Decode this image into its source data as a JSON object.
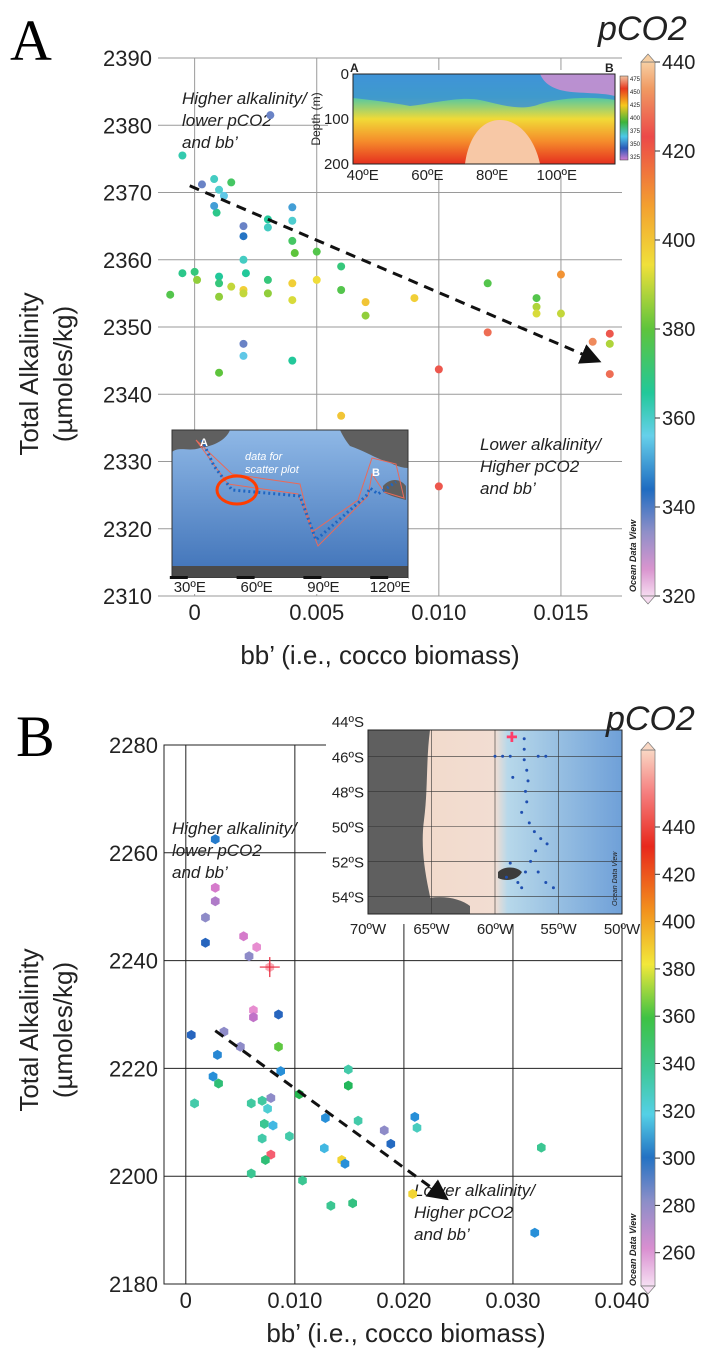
{
  "figure": {
    "panelA": {
      "letter": "A",
      "ylabel": "Total Alkalinity",
      "ylabel_units": "(µmoles/kg)",
      "xlabel": "bb’ (i.e., cocco biomass)",
      "x_ticks": [
        "0",
        "0.005",
        "0.010",
        "0.015"
      ],
      "y_ticks": [
        "2390",
        "2380",
        "2370",
        "2360",
        "2350",
        "2340",
        "2330",
        "2320",
        "2310"
      ],
      "annotation_upper": [
        "Higher alkalinity/",
        "lower pCO2",
        "and bb’"
      ],
      "annotation_lower": [
        "Lower alkalinity/",
        "Higher pCO2",
        "and bb’"
      ],
      "colorbar": {
        "title": "pCO2",
        "ticks": [
          "440",
          "420",
          "400",
          "380",
          "360",
          "340",
          "320"
        ],
        "watermark": "Ocean Data View"
      },
      "inset_section": {
        "label_left": "A",
        "label_right": "B",
        "ylabel": "Depth (m)",
        "y_ticks": [
          "0",
          "100",
          "200"
        ],
        "x_ticks": [
          "40ºE",
          "60ºE",
          "80ºE",
          "100ºE"
        ],
        "colorbar_ticks": [
          "475",
          "450",
          "425",
          "400",
          "375",
          "350",
          "325"
        ]
      },
      "inset_map": {
        "label_a": "A",
        "label_b": "B",
        "note": [
          "data for",
          "scatter plot"
        ],
        "x_ticks": [
          "30ºE",
          "60ºE",
          "90ºE",
          "120ºE"
        ]
      }
    },
    "panelB": {
      "letter": "B",
      "ylabel": "Total Alkalinity",
      "ylabel_units": "(µmoles/kg)",
      "xlabel": "bb’ (i.e., cocco biomass)",
      "x_ticks": [
        "0",
        "0.010",
        "0.020",
        "0.030",
        "0.040"
      ],
      "y_ticks": [
        "2280",
        "2260",
        "2240",
        "2220",
        "2200",
        "2180"
      ],
      "annotation_upper": [
        "Higher alkalinity/",
        "lower pCO2",
        "and bb’"
      ],
      "annotation_lower": [
        "Lower alkalinity/",
        "Higher pCO2",
        "and bb’"
      ],
      "colorbar": {
        "title": "pCO2",
        "ticks": [
          "440",
          "420",
          "400",
          "380",
          "360",
          "340",
          "320",
          "300",
          "280",
          "260"
        ],
        "watermark": "Ocean Data View"
      },
      "inset_map": {
        "lat_ticks": [
          "44ºS",
          "46ºS",
          "48ºS",
          "50ºS",
          "52ºS",
          "54ºS"
        ],
        "lon_ticks": [
          "70ºW",
          "65ºW",
          "60ºW",
          "55ºW",
          "50ºW"
        ],
        "watermark": "Ocean Data View"
      }
    }
  },
  "chart_data": [
    {
      "type": "scatter",
      "title": "A",
      "xlabel": "bb’ (i.e., cocco biomass)",
      "ylabel": "Total Alkalinity (µmoles/kg)",
      "xlim": [
        -0.0015,
        0.0175
      ],
      "ylim": [
        2310,
        2390
      ],
      "color_variable": "pCO2",
      "color_range": [
        320,
        440
      ],
      "grid": true,
      "trend_arrow": {
        "from": [
          -0.0002,
          2371
        ],
        "to": [
          0.0165,
          2345
        ]
      },
      "points": [
        {
          "x": -0.0005,
          "y": 2375.5,
          "c": 365
        },
        {
          "x": 0.0003,
          "y": 2371.2,
          "c": 340
        },
        {
          "x": 0.0008,
          "y": 2372.0,
          "c": 362
        },
        {
          "x": 0.001,
          "y": 2370.4,
          "c": 360
        },
        {
          "x": 0.0012,
          "y": 2369.5,
          "c": 355
        },
        {
          "x": 0.0009,
          "y": 2367.0,
          "c": 370
        },
        {
          "x": 0.0008,
          "y": 2368.0,
          "c": 350
        },
        {
          "x": 0.0015,
          "y": 2371.5,
          "c": 375
        },
        {
          "x": 0.002,
          "y": 2365.0,
          "c": 340
        },
        {
          "x": 0.002,
          "y": 2363.5,
          "c": 345
        },
        {
          "x": 0.002,
          "y": 2360.0,
          "c": 362
        },
        {
          "x": 0.0021,
          "y": 2358.0,
          "c": 368
        },
        {
          "x": 0.003,
          "y": 2366.0,
          "c": 368
        },
        {
          "x": 0.003,
          "y": 2364.8,
          "c": 362
        },
        {
          "x": 0.0031,
          "y": 2381.5,
          "c": 340
        },
        {
          "x": 0.004,
          "y": 2367.8,
          "c": 350
        },
        {
          "x": 0.004,
          "y": 2365.8,
          "c": 360
        },
        {
          "x": 0.004,
          "y": 2362.8,
          "c": 375
        },
        {
          "x": 0.0041,
          "y": 2361.0,
          "c": 380
        },
        {
          "x": 0.005,
          "y": 2361.2,
          "c": 378
        },
        {
          "x": 0.006,
          "y": 2359.0,
          "c": 372
        },
        {
          "x": -0.001,
          "y": 2354.8,
          "c": 378
        },
        {
          "x": -0.0005,
          "y": 2358.0,
          "c": 370
        },
        {
          "x": 0.0,
          "y": 2358.2,
          "c": 372
        },
        {
          "x": 0.0001,
          "y": 2357.0,
          "c": 385
        },
        {
          "x": 0.001,
          "y": 2357.5,
          "c": 368
        },
        {
          "x": 0.001,
          "y": 2356.5,
          "c": 372
        },
        {
          "x": 0.001,
          "y": 2354.5,
          "c": 385
        },
        {
          "x": 0.0015,
          "y": 2356.0,
          "c": 390
        },
        {
          "x": 0.002,
          "y": 2355.5,
          "c": 398
        },
        {
          "x": 0.002,
          "y": 2355.0,
          "c": 390
        },
        {
          "x": 0.003,
          "y": 2357.0,
          "c": 372
        },
        {
          "x": 0.003,
          "y": 2355.0,
          "c": 385
        },
        {
          "x": 0.004,
          "y": 2356.5,
          "c": 398
        },
        {
          "x": 0.004,
          "y": 2354.0,
          "c": 392
        },
        {
          "x": 0.005,
          "y": 2357.0,
          "c": 395
        },
        {
          "x": 0.006,
          "y": 2355.5,
          "c": 378
        },
        {
          "x": 0.007,
          "y": 2353.7,
          "c": 400
        },
        {
          "x": 0.007,
          "y": 2351.7,
          "c": 385
        },
        {
          "x": 0.009,
          "y": 2354.3,
          "c": 398
        },
        {
          "x": 0.012,
          "y": 2356.5,
          "c": 378
        },
        {
          "x": 0.014,
          "y": 2354.3,
          "c": 378
        },
        {
          "x": 0.014,
          "y": 2353.0,
          "c": 388
        },
        {
          "x": 0.014,
          "y": 2352.0,
          "c": 392
        },
        {
          "x": 0.015,
          "y": 2357.8,
          "c": 410
        },
        {
          "x": 0.015,
          "y": 2352.0,
          "c": 390
        },
        {
          "x": 0.017,
          "y": 2349.0,
          "c": 425
        },
        {
          "x": 0.017,
          "y": 2347.5,
          "c": 388
        },
        {
          "x": 0.017,
          "y": 2343.0,
          "c": 428
        },
        {
          "x": 0.0163,
          "y": 2347.8,
          "c": 432
        },
        {
          "x": 0.012,
          "y": 2349.2,
          "c": 428
        },
        {
          "x": 0.001,
          "y": 2343.2,
          "c": 380
        },
        {
          "x": 0.002,
          "y": 2347.5,
          "c": 340
        },
        {
          "x": 0.002,
          "y": 2345.7,
          "c": 355
        },
        {
          "x": 0.004,
          "y": 2345.0,
          "c": 368
        },
        {
          "x": 0.006,
          "y": 2336.8,
          "c": 400
        },
        {
          "x": 0.01,
          "y": 2343.7,
          "c": 425
        },
        {
          "x": 0.01,
          "y": 2326.3,
          "c": 425
        }
      ]
    },
    {
      "type": "scatter",
      "title": "B",
      "xlabel": "bb’ (i.e., cocco biomass)",
      "ylabel": "Total Alkalinity (µmoles/kg)",
      "xlim": [
        -0.002,
        0.04
      ],
      "ylim": [
        2180,
        2280
      ],
      "color_variable": "pCO2",
      "color_range": [
        240,
        465
      ],
      "grid": true,
      "trend_arrow": {
        "from": [
          0.0027,
          2227
        ],
        "to": [
          0.0238,
          2196
        ]
      },
      "points": [
        {
          "x": 0.0027,
          "y": 2262.5,
          "c": 305
        },
        {
          "x": 0.0027,
          "y": 2253.5,
          "c": 255
        },
        {
          "x": 0.0027,
          "y": 2251.0,
          "c": 270
        },
        {
          "x": 0.0018,
          "y": 2248.0,
          "c": 280
        },
        {
          "x": 0.0018,
          "y": 2243.3,
          "c": 298
        },
        {
          "x": 0.0053,
          "y": 2244.5,
          "c": 255
        },
        {
          "x": 0.0065,
          "y": 2242.5,
          "c": 245
        },
        {
          "x": 0.0058,
          "y": 2240.8,
          "c": 280
        },
        {
          "x": 0.0077,
          "y": 2238.8,
          "c": 465
        },
        {
          "x": 0.0062,
          "y": 2230.8,
          "c": 245
        },
        {
          "x": 0.0062,
          "y": 2229.5,
          "c": 265
        },
        {
          "x": 0.0085,
          "y": 2230.0,
          "c": 298
        },
        {
          "x": 0.0005,
          "y": 2226.2,
          "c": 298
        },
        {
          "x": 0.0035,
          "y": 2226.8,
          "c": 280
        },
        {
          "x": 0.0029,
          "y": 2222.5,
          "c": 308
        },
        {
          "x": 0.0085,
          "y": 2224.0,
          "c": 380
        },
        {
          "x": 0.005,
          "y": 2224.0,
          "c": 280
        },
        {
          "x": 0.0087,
          "y": 2219.5,
          "c": 310
        },
        {
          "x": 0.0025,
          "y": 2218.5,
          "c": 310
        },
        {
          "x": 0.003,
          "y": 2217.2,
          "c": 350
        },
        {
          "x": 0.0149,
          "y": 2219.8,
          "c": 340
        },
        {
          "x": 0.0149,
          "y": 2216.8,
          "c": 355
        },
        {
          "x": 0.0104,
          "y": 2215.2,
          "c": 360
        },
        {
          "x": 0.0008,
          "y": 2213.5,
          "c": 340
        },
        {
          "x": 0.006,
          "y": 2213.5,
          "c": 342
        },
        {
          "x": 0.007,
          "y": 2214.0,
          "c": 342
        },
        {
          "x": 0.0078,
          "y": 2214.5,
          "c": 280
        },
        {
          "x": 0.0075,
          "y": 2212.5,
          "c": 330
        },
        {
          "x": 0.0128,
          "y": 2210.8,
          "c": 310
        },
        {
          "x": 0.0158,
          "y": 2210.3,
          "c": 340
        },
        {
          "x": 0.0072,
          "y": 2209.7,
          "c": 345
        },
        {
          "x": 0.008,
          "y": 2209.4,
          "c": 320
        },
        {
          "x": 0.021,
          "y": 2211.0,
          "c": 310
        },
        {
          "x": 0.0212,
          "y": 2209.0,
          "c": 335
        },
        {
          "x": 0.0182,
          "y": 2208.5,
          "c": 280
        },
        {
          "x": 0.0188,
          "y": 2206.0,
          "c": 300
        },
        {
          "x": 0.007,
          "y": 2207.0,
          "c": 340
        },
        {
          "x": 0.0095,
          "y": 2207.4,
          "c": 340
        },
        {
          "x": 0.0127,
          "y": 2205.2,
          "c": 320
        },
        {
          "x": 0.0078,
          "y": 2204.0,
          "c": 450
        },
        {
          "x": 0.0073,
          "y": 2203.0,
          "c": 350
        },
        {
          "x": 0.0143,
          "y": 2203.0,
          "c": 400
        },
        {
          "x": 0.0146,
          "y": 2202.3,
          "c": 310
        },
        {
          "x": 0.006,
          "y": 2200.5,
          "c": 345
        },
        {
          "x": 0.0107,
          "y": 2199.2,
          "c": 345
        },
        {
          "x": 0.0208,
          "y": 2196.7,
          "c": 400
        },
        {
          "x": 0.023,
          "y": 2196.9,
          "c": 350
        },
        {
          "x": 0.0326,
          "y": 2205.3,
          "c": 345
        },
        {
          "x": 0.0133,
          "y": 2194.5,
          "c": 345
        },
        {
          "x": 0.0153,
          "y": 2195.0,
          "c": 348
        },
        {
          "x": 0.032,
          "y": 2189.5,
          "c": 310
        }
      ]
    }
  ],
  "colors": {
    "grid_a": "#9a9a9a",
    "grid_b": "#222222",
    "map_land": "#5f5f5f",
    "map_ocean": "#5b8ac8",
    "inset_b_land": "#e6cdb8",
    "track": "#1f66c2",
    "highlight": "#ff3d00",
    "cruise_outline": "#e96a5a"
  }
}
